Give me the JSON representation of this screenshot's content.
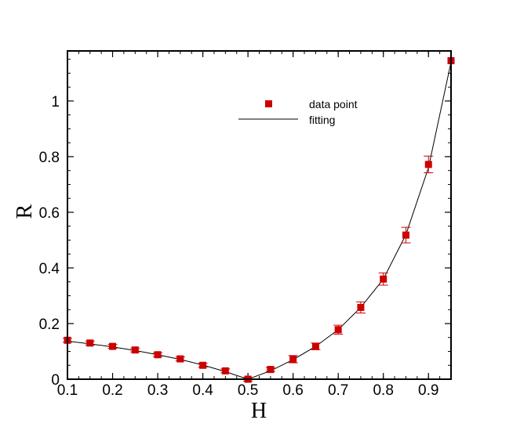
{
  "chart_data": {
    "type": "scatter",
    "xlabel": "H",
    "ylabel": "R",
    "xlim": [
      0.1,
      0.95
    ],
    "ylim": [
      0,
      1.18
    ],
    "grid": false,
    "legend_position": "top-center",
    "x_ticks": [
      0.1,
      0.2,
      0.3,
      0.4,
      0.5,
      0.6,
      0.7,
      0.8,
      0.9
    ],
    "x_tick_labels": [
      "0.1",
      "0.2",
      "0.3",
      "0.4",
      "0.5",
      "0.6",
      "0.7",
      "0.8",
      "0.9"
    ],
    "y_ticks": [
      0,
      0.2,
      0.4,
      0.6,
      0.8,
      1
    ],
    "y_tick_labels": [
      "0",
      "0.2",
      "0.4",
      "0.6",
      "0.8",
      "1"
    ],
    "series": [
      {
        "name": "data point",
        "marker": "square",
        "color": "#cc0000",
        "x": [
          0.1,
          0.15,
          0.2,
          0.25,
          0.3,
          0.35,
          0.4,
          0.45,
          0.5,
          0.55,
          0.6,
          0.65,
          0.7,
          0.75,
          0.8,
          0.85,
          0.9,
          0.95
        ],
        "y": [
          0.14,
          0.13,
          0.118,
          0.105,
          0.088,
          0.073,
          0.05,
          0.03,
          0.0,
          0.035,
          0.072,
          0.118,
          0.178,
          0.258,
          0.36,
          0.518,
          0.772,
          1.145
        ],
        "err": [
          0.007,
          0.007,
          0.007,
          0.007,
          0.007,
          0.007,
          0.007,
          0.007,
          0.007,
          0.007,
          0.013,
          0.012,
          0.016,
          0.02,
          0.022,
          0.028,
          0.03,
          0.0
        ]
      },
      {
        "name": "fitting",
        "type": "line",
        "color": "#000000",
        "x": [
          0.1,
          0.15,
          0.2,
          0.25,
          0.3,
          0.35,
          0.4,
          0.45,
          0.5,
          0.55,
          0.6,
          0.65,
          0.7,
          0.75,
          0.8,
          0.85,
          0.9,
          0.95
        ],
        "y": [
          0.137,
          0.127,
          0.116,
          0.103,
          0.088,
          0.071,
          0.051,
          0.027,
          0.0,
          0.03,
          0.07,
          0.118,
          0.178,
          0.258,
          0.36,
          0.52,
          0.76,
          1.14
        ]
      }
    ]
  }
}
